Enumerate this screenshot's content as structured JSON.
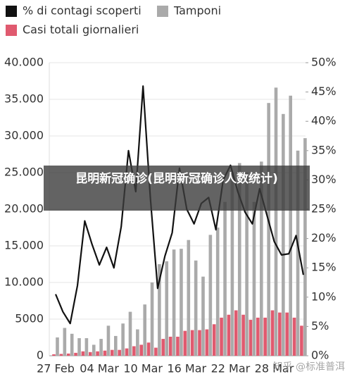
{
  "chart_data": {
    "type": "bar",
    "categories": [
      "27 Feb",
      null,
      null,
      null,
      null,
      null,
      "04 Mar",
      null,
      null,
      null,
      null,
      null,
      "10 Mar",
      null,
      null,
      null,
      null,
      null,
      "16 Mar",
      null,
      null,
      null,
      null,
      null,
      "22 Mar",
      null,
      null,
      null,
      null,
      null,
      "28 Mar",
      null,
      null,
      null,
      null
    ],
    "series": [
      {
        "name": "% di contagi scoperti",
        "color": "#111111",
        "type": "line",
        "axis": "y2",
        "values": [
          10.5,
          7.5,
          5.5,
          12,
          23,
          19,
          15.5,
          18.5,
          15,
          22,
          35,
          28,
          46,
          27,
          11.5,
          17,
          21,
          32,
          25,
          22.5,
          26,
          27,
          21.5,
          30,
          32.5,
          28,
          24.5,
          22.5,
          28.5,
          24,
          19.5,
          17.2,
          17.4,
          20.5,
          13.8
        ]
      },
      {
        "name": "Tamponi",
        "color": "#aaaaaa",
        "type": "bar",
        "values": [
          2500,
          3800,
          3000,
          2400,
          2400,
          1500,
          2300,
          4100,
          2700,
          4400,
          6000,
          3600,
          7000,
          10000,
          12500,
          12900,
          14500,
          14600,
          15800,
          13000,
          10800,
          16500,
          17500,
          21000,
          25000,
          26300,
          25000,
          21000,
          26500,
          34500,
          36600,
          33000,
          35500,
          28000,
          29700
        ]
      },
      {
        "name": "Casi totali giornalieri",
        "color": "#e05a6f",
        "type": "bar",
        "values": [
          200,
          250,
          300,
          400,
          600,
          500,
          600,
          700,
          800,
          800,
          1000,
          1300,
          1500,
          1800,
          1100,
          2300,
          2600,
          2600,
          3400,
          3500,
          3500,
          3600,
          4300,
          5200,
          5600,
          6200,
          5600,
          4900,
          5200,
          5200,
          6200,
          5900,
          5900,
          5200,
          4100
        ]
      }
    ],
    "ylim": [
      0,
      40000
    ],
    "yticks": [
      0,
      5000,
      {
        "value": 10000,
        "label": "10.000"
      },
      {
        "value": 15000,
        "label": "15.000"
      },
      {
        "value": 20000,
        "label": "20.000"
      },
      {
        "value": 25000,
        "label": "25.000"
      },
      {
        "value": 30000,
        "label": "30.000"
      },
      {
        "value": 35000,
        "label": "35.000"
      },
      {
        "value": 40000,
        "label": "40.000"
      }
    ],
    "y2lim": [
      0,
      50
    ],
    "y2ticks": [
      {
        "value": 0,
        "label": "0%"
      },
      {
        "value": 5,
        "label": "5%"
      },
      {
        "value": 10,
        "label": "10%"
      },
      {
        "value": 15,
        "label": "15%"
      },
      {
        "value": 20,
        "label": "20%"
      },
      {
        "value": 25,
        "label": "25%"
      },
      {
        "value": 30,
        "label": "30%"
      },
      {
        "value": 35,
        "label": "35%"
      },
      {
        "value": 40,
        "label": "40%"
      },
      {
        "value": 45,
        "label": "45%"
      },
      {
        "value": 50,
        "label": "50%"
      }
    ],
    "grid": true
  },
  "overlay": {
    "banner": "昆明新冠确诊(昆明新冠确诊人数统计)",
    "watermark": "知乎 @标准普洱"
  }
}
